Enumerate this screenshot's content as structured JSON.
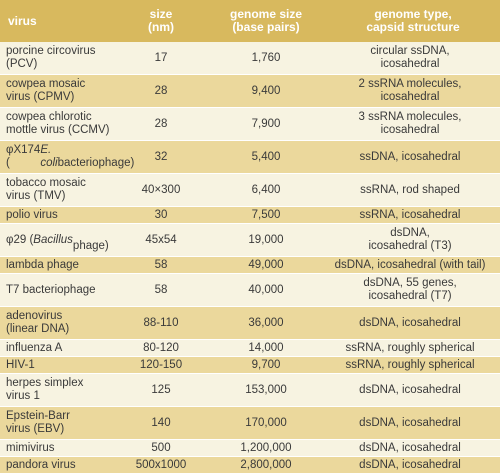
{
  "headers": {
    "virus": "virus",
    "size": "size\n(nm)",
    "genome_size": "genome size\n(base pairs)",
    "genome_type": "genome type,\ncapsid structure"
  },
  "rows": [
    {
      "virus": "porcine circovirus\n(PCV)",
      "size": "17",
      "genome": "1,760",
      "type": "circular ssDNA,\nicosahedral"
    },
    {
      "virus": "cowpea mosaic\nvirus (CPMV)",
      "size": "28",
      "genome": "9,400",
      "type": "2 ssRNA molecules,\nicosahedral"
    },
    {
      "virus": "cowpea chlorotic\nmottle virus (CCMV)",
      "size": "28",
      "genome": "7,900",
      "type": "3 ssRNA molecules,\nicosahedral"
    },
    {
      "virus": "φX174 (E. coli\nbacteriophage)",
      "size": "32",
      "genome": "5,400",
      "type": "ssDNA, icosahedral"
    },
    {
      "virus": "tobacco mosaic\nvirus (TMV)",
      "size": "40×300",
      "genome": "6,400",
      "type": "ssRNA, rod shaped"
    },
    {
      "virus": "polio virus",
      "size": "30",
      "genome": "7,500",
      "type": "ssRNA, icosahedral"
    },
    {
      "virus": "φ29 (Bacillus\nphage)",
      "size": "45x54",
      "genome": "19,000",
      "type": "dsDNA,\nicosahedral  (T3)"
    },
    {
      "virus": "lambda phage",
      "size": "58",
      "genome": "49,000",
      "type": "dsDNA, icosahedral  (with tail)"
    },
    {
      "virus": "T7 bacteriophage",
      "size": "58",
      "genome": "40,000",
      "type": "dsDNA, 55 genes,\nicosahedral  (T7)"
    },
    {
      "virus": "adenovirus\n(linear DNA)",
      "size": "88-110",
      "genome": "36,000",
      "type": "dsDNA, icosahedral"
    },
    {
      "virus": "influenza A",
      "size": "80-120",
      "genome": "14,000",
      "type": "ssRNA, roughly spherical"
    },
    {
      "virus": "HIV-1",
      "size": "120-150",
      "genome": "9,700",
      "type": "ssRNA, roughly spherical"
    },
    {
      "virus": "herpes simplex\nvirus 1",
      "size": "125",
      "genome": "153,000",
      "type": "dsDNA, icosahedral"
    },
    {
      "virus": "Epstein-Barr\nvirus (EBV)",
      "size": "140",
      "genome": "170,000",
      "type": "dsDNA, icosahedral"
    },
    {
      "virus": "mimivirus",
      "size": "500",
      "genome": "1,200,000",
      "type": "dsDNA, icosahedral"
    },
    {
      "virus": "pandora virus",
      "size": "500x1000",
      "genome": "2,800,000",
      "type": "dsDNA, icosahedral"
    }
  ]
}
